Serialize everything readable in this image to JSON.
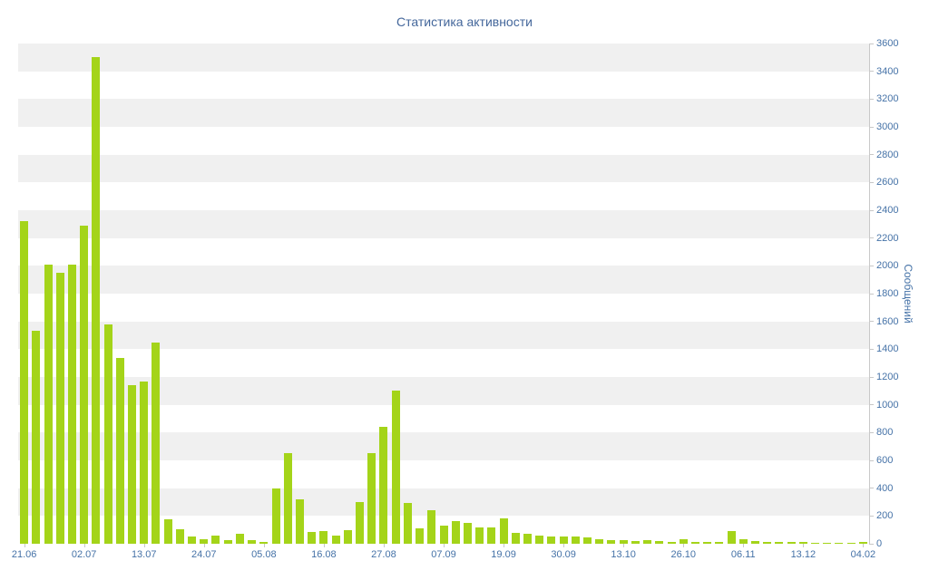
{
  "chart_data": {
    "type": "bar",
    "title": "Статистика активности",
    "xlabel": "",
    "ylabel": "Сообщений",
    "ylim": [
      0,
      3600
    ],
    "ytick_step": 200,
    "legend": "none",
    "grid": "alternating horizontal bands",
    "x_tick_labels": [
      "21.06",
      "02.07",
      "13.07",
      "24.07",
      "05.08",
      "16.08",
      "27.08",
      "07.09",
      "19.09",
      "30.09",
      "13.10",
      "26.10",
      "06.11",
      "13.12",
      "04.02"
    ],
    "x_tick_every": 5,
    "values": [
      2320,
      1530,
      2010,
      1950,
      2010,
      2290,
      3500,
      1580,
      1340,
      1140,
      1170,
      1450,
      175,
      105,
      55,
      35,
      60,
      25,
      75,
      25,
      15,
      400,
      650,
      320,
      85,
      90,
      60,
      100,
      300,
      650,
      840,
      1100,
      295,
      110,
      240,
      130,
      165,
      150,
      120,
      115,
      185,
      80,
      75,
      60,
      55,
      55,
      50,
      45,
      30,
      25,
      25,
      20,
      25,
      20,
      15,
      30,
      15,
      10,
      15,
      90,
      30,
      20,
      15,
      10,
      10,
      10,
      8,
      5,
      8,
      5,
      10
    ]
  },
  "colors": {
    "bar": "#a4d419",
    "band": "#f0f0f0",
    "plot_background": "#ffffff",
    "axis_text": "#4572a7",
    "title_text": "#44679b",
    "axis_line": "#c8c8c8"
  }
}
